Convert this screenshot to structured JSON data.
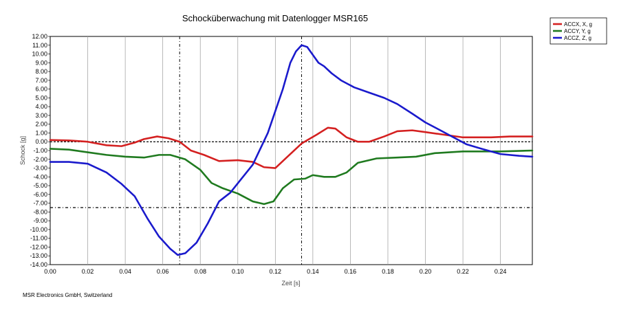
{
  "chart_data": {
    "type": "line",
    "title": "Schocküberwachung mit Datenlogger MSR165",
    "xlabel": "Zeit [s]",
    "ylabel": "Schock [g]",
    "xlim": [
      0,
      0.257
    ],
    "ylim": [
      -14,
      12
    ],
    "x_ticks": [
      "0.00",
      "0.02",
      "0.04",
      "0.06",
      "0.08",
      "0.10",
      "0.12",
      "0.14",
      "0.16",
      "0.18",
      "0.20",
      "0.22",
      "0.24"
    ],
    "y_ticks": [
      "12.00",
      "11.00",
      "10.00",
      "9.00",
      "8.00",
      "7.00",
      "6.00",
      "5.00",
      "4.00",
      "3.00",
      "2.00",
      "1.00",
      "0.00",
      "-1.00",
      "-2.00",
      "-3.00",
      "-4.00",
      "-5.00",
      "-6.00",
      "-7.00",
      "-8.00",
      "-9.00",
      "-10.00",
      "-11.00",
      "-12.00",
      "-13.00",
      "-14.00"
    ],
    "grid": true,
    "legend_position": "top-right",
    "cursor_lines": [
      {
        "x": 0.069
      },
      {
        "x": 0.134
      },
      {
        "y": 0
      },
      {
        "y": -7.5
      }
    ],
    "series": [
      {
        "name": "ACCX, X, g",
        "color": "#d42020",
        "points": [
          [
            0.0,
            0.2
          ],
          [
            0.01,
            0.15
          ],
          [
            0.02,
            0.0
          ],
          [
            0.03,
            -0.4
          ],
          [
            0.038,
            -0.5
          ],
          [
            0.045,
            -0.1
          ],
          [
            0.05,
            0.3
          ],
          [
            0.057,
            0.6
          ],
          [
            0.063,
            0.4
          ],
          [
            0.069,
            0.0
          ],
          [
            0.075,
            -1.0
          ],
          [
            0.082,
            -1.5
          ],
          [
            0.09,
            -2.2
          ],
          [
            0.1,
            -2.1
          ],
          [
            0.108,
            -2.3
          ],
          [
            0.114,
            -2.9
          ],
          [
            0.12,
            -3.0
          ],
          [
            0.126,
            -1.8
          ],
          [
            0.134,
            -0.2
          ],
          [
            0.142,
            0.8
          ],
          [
            0.148,
            1.6
          ],
          [
            0.152,
            1.5
          ],
          [
            0.158,
            0.5
          ],
          [
            0.164,
            0.0
          ],
          [
            0.17,
            0.0
          ],
          [
            0.178,
            0.6
          ],
          [
            0.185,
            1.2
          ],
          [
            0.193,
            1.3
          ],
          [
            0.2,
            1.1
          ],
          [
            0.21,
            0.8
          ],
          [
            0.22,
            0.5
          ],
          [
            0.235,
            0.5
          ],
          [
            0.245,
            0.6
          ],
          [
            0.257,
            0.6
          ]
        ]
      },
      {
        "name": "ACCY, Y, g",
        "color": "#1f7a1f",
        "points": [
          [
            0.0,
            -0.8
          ],
          [
            0.01,
            -0.9
          ],
          [
            0.02,
            -1.2
          ],
          [
            0.03,
            -1.5
          ],
          [
            0.04,
            -1.7
          ],
          [
            0.05,
            -1.8
          ],
          [
            0.058,
            -1.5
          ],
          [
            0.064,
            -1.5
          ],
          [
            0.072,
            -2.0
          ],
          [
            0.08,
            -3.2
          ],
          [
            0.086,
            -4.7
          ],
          [
            0.092,
            -5.3
          ],
          [
            0.1,
            -5.9
          ],
          [
            0.108,
            -6.8
          ],
          [
            0.114,
            -7.1
          ],
          [
            0.119,
            -6.8
          ],
          [
            0.124,
            -5.3
          ],
          [
            0.13,
            -4.3
          ],
          [
            0.136,
            -4.2
          ],
          [
            0.14,
            -3.8
          ],
          [
            0.146,
            -4.0
          ],
          [
            0.152,
            -4.0
          ],
          [
            0.158,
            -3.5
          ],
          [
            0.164,
            -2.4
          ],
          [
            0.174,
            -1.9
          ],
          [
            0.185,
            -1.8
          ],
          [
            0.195,
            -1.7
          ],
          [
            0.205,
            -1.3
          ],
          [
            0.22,
            -1.1
          ],
          [
            0.24,
            -1.1
          ],
          [
            0.257,
            -1.0
          ]
        ]
      },
      {
        "name": "ACCZ, Z, g",
        "color": "#1a1acc",
        "points": [
          [
            0.0,
            -2.3
          ],
          [
            0.01,
            -2.3
          ],
          [
            0.02,
            -2.5
          ],
          [
            0.03,
            -3.5
          ],
          [
            0.038,
            -4.8
          ],
          [
            0.045,
            -6.2
          ],
          [
            0.052,
            -8.8
          ],
          [
            0.058,
            -10.8
          ],
          [
            0.064,
            -12.2
          ],
          [
            0.068,
            -12.9
          ],
          [
            0.072,
            -12.7
          ],
          [
            0.078,
            -11.5
          ],
          [
            0.084,
            -9.3
          ],
          [
            0.09,
            -6.8
          ],
          [
            0.096,
            -5.8
          ],
          [
            0.102,
            -4.2
          ],
          [
            0.108,
            -2.6
          ],
          [
            0.112,
            -0.8
          ],
          [
            0.116,
            1.0
          ],
          [
            0.12,
            3.5
          ],
          [
            0.124,
            6.0
          ],
          [
            0.128,
            9.0
          ],
          [
            0.131,
            10.3
          ],
          [
            0.134,
            11.0
          ],
          [
            0.137,
            10.8
          ],
          [
            0.14,
            9.9
          ],
          [
            0.143,
            9.0
          ],
          [
            0.146,
            8.6
          ],
          [
            0.15,
            7.8
          ],
          [
            0.155,
            7.0
          ],
          [
            0.162,
            6.2
          ],
          [
            0.17,
            5.6
          ],
          [
            0.178,
            5.0
          ],
          [
            0.185,
            4.3
          ],
          [
            0.193,
            3.2
          ],
          [
            0.2,
            2.2
          ],
          [
            0.208,
            1.3
          ],
          [
            0.215,
            0.5
          ],
          [
            0.222,
            -0.3
          ],
          [
            0.23,
            -0.8
          ],
          [
            0.24,
            -1.4
          ],
          [
            0.25,
            -1.6
          ],
          [
            0.257,
            -1.7
          ]
        ]
      }
    ]
  },
  "footer_text": "MSR Electronics GmbH, Switzerland"
}
